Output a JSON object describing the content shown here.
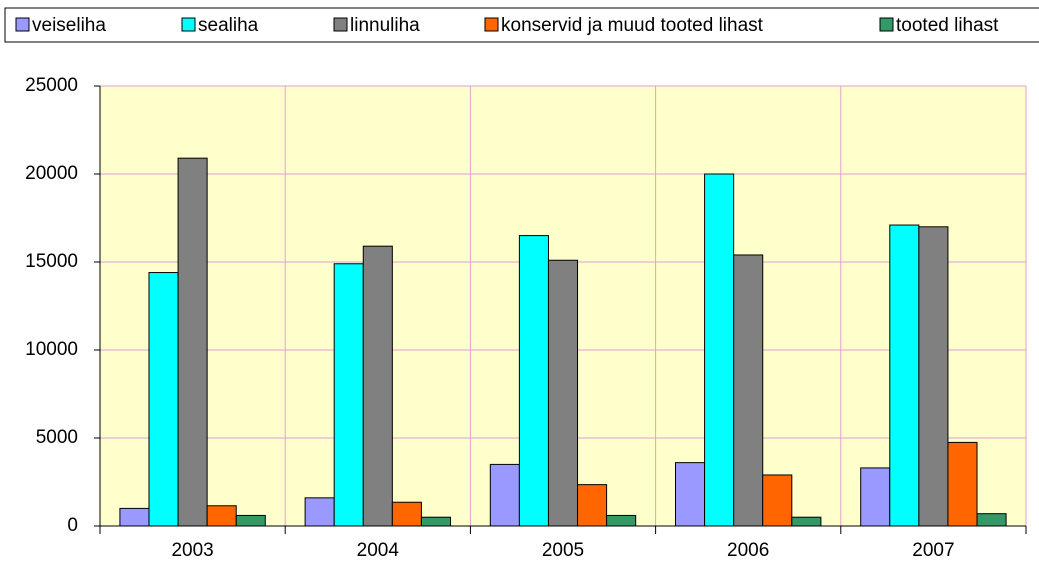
{
  "chart_data": {
    "type": "bar",
    "categories": [
      "2003",
      "2004",
      "2005",
      "2006",
      "2007"
    ],
    "series": [
      {
        "name": "veiseliha",
        "color": "#9999ff",
        "values": [
          1000,
          1600,
          3500,
          3600,
          3300
        ]
      },
      {
        "name": "sealiha",
        "color": "#00ffff",
        "values": [
          14400,
          14900,
          16500,
          20000,
          17100
        ]
      },
      {
        "name": "linnuliha",
        "color": "#808080",
        "values": [
          20900,
          15900,
          15100,
          15400,
          17000
        ]
      },
      {
        "name": "konservid ja muud tooted lihast",
        "color": "#ff6600",
        "values": [
          1150,
          1350,
          2350,
          2900,
          4750
        ]
      },
      {
        "name": "tooted lihast",
        "color": "#339966",
        "values": [
          600,
          500,
          600,
          500,
          700
        ]
      }
    ],
    "ylim": [
      0,
      25000
    ],
    "yticks": [
      0,
      5000,
      10000,
      15000,
      20000,
      25000
    ],
    "grid": true,
    "legend": "top",
    "plot_background": "#ffffcc"
  }
}
